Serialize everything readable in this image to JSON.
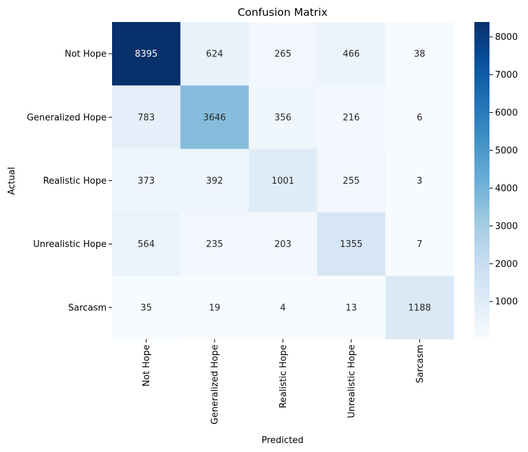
{
  "chart_data": {
    "type": "heatmap",
    "title": "Confusion Matrix",
    "xlabel": "Predicted",
    "ylabel": "Actual",
    "x_categories": [
      "Not Hope",
      "Generalized Hope",
      "Realistic Hope",
      "Unrealistic Hope",
      "Sarcasm"
    ],
    "y_categories": [
      "Not Hope",
      "Generalized Hope",
      "Realistic Hope",
      "Unrealistic Hope",
      "Sarcasm"
    ],
    "values": [
      [
        8395,
        624,
        265,
        466,
        38
      ],
      [
        783,
        3646,
        356,
        216,
        6
      ],
      [
        373,
        392,
        1001,
        255,
        3
      ],
      [
        564,
        235,
        203,
        1355,
        7
      ],
      [
        35,
        19,
        4,
        13,
        1188
      ]
    ],
    "colormap": "Blues",
    "color_range": [
      3,
      8395
    ],
    "colorbar_ticks": [
      1000,
      2000,
      3000,
      4000,
      5000,
      6000,
      7000,
      8000
    ]
  }
}
